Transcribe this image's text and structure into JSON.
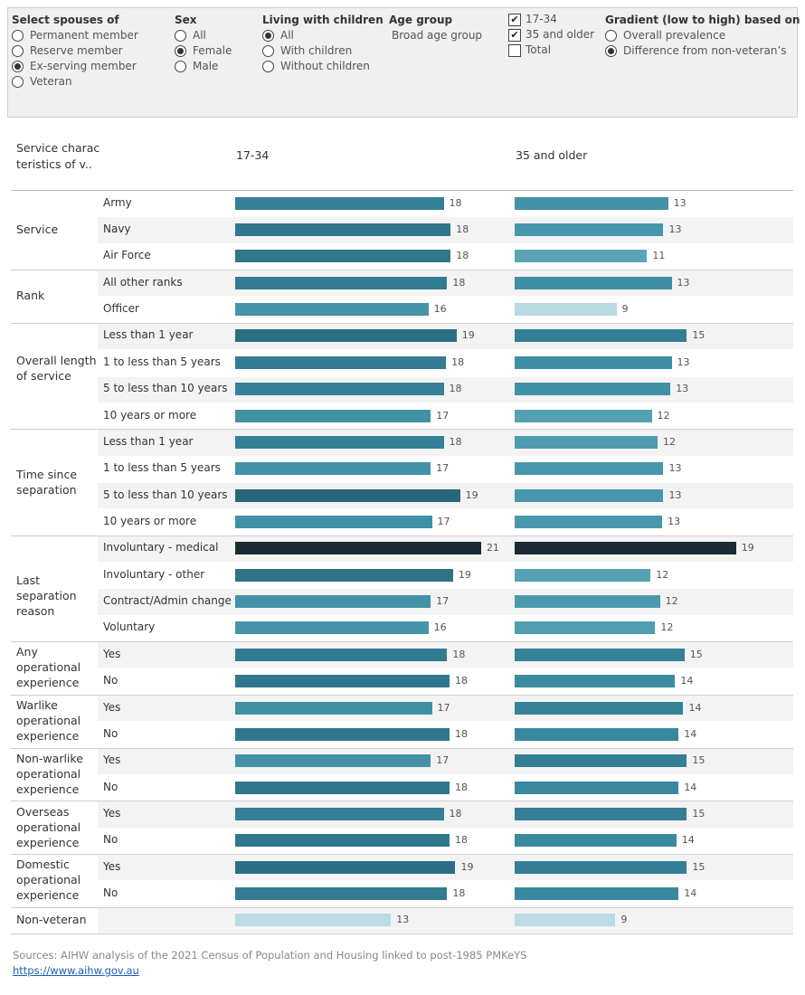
{
  "filters": {
    "spouses": {
      "title": "Select spouses of",
      "options": [
        "Permanent member",
        "Reserve member",
        "Ex-serving member",
        "Veteran"
      ],
      "selected": 2
    },
    "sex": {
      "title": "Sex",
      "options": [
        "All",
        "Female",
        "Male"
      ],
      "selected": 1
    },
    "children": {
      "title": "Living with children",
      "options": [
        "All",
        "With children",
        "Without children"
      ],
      "selected": 0
    },
    "age_group": {
      "title": "Age group",
      "value": "Broad age group"
    },
    "ages": {
      "options": [
        "17-34",
        "35 and older",
        "Total"
      ],
      "checked": [
        true,
        true,
        false
      ]
    },
    "gradient": {
      "title": "Gradient (low to high) based on",
      "options": [
        "Overall prevalence",
        "Difference from non-veteran’s"
      ],
      "selected": 1
    }
  },
  "chart_data": {
    "type": "bar",
    "row_header": [
      "Service charac",
      "teristics of v.."
    ],
    "groups": [
      {
        "label": "Service",
        "categories": [
          "Army",
          "Navy",
          "Air Force"
        ]
      },
      {
        "label": "Rank",
        "categories": [
          "All other ranks",
          "Officer"
        ]
      },
      {
        "label": "Overall length of service",
        "categories": [
          "Less than 1 year",
          "1 to less than 5 years",
          "5 to less than 10 years",
          "10 years or more"
        ]
      },
      {
        "label": "Time since separation",
        "categories": [
          "Less than 1 year",
          "1 to less than 5 years",
          "5 to less than 10 years",
          "10 years or more"
        ]
      },
      {
        "label": "Last separation reason",
        "categories": [
          "Involuntary - medical",
          "Involuntary - other",
          "Contract/Admin change",
          "Voluntary"
        ]
      },
      {
        "label": "Any operational experience",
        "categories": [
          "Yes",
          "No"
        ]
      },
      {
        "label": "Warlike operational experience",
        "categories": [
          "Yes",
          "No"
        ]
      },
      {
        "label": "Non-warlike operational experience",
        "categories": [
          "Yes",
          "No"
        ]
      },
      {
        "label": "Overseas operational experience",
        "categories": [
          "Yes",
          "No"
        ]
      },
      {
        "label": "Domestic operational experience",
        "categories": [
          "Yes",
          "No"
        ]
      },
      {
        "label": "Non-veteran",
        "categories": [
          null
        ]
      }
    ],
    "series": [
      {
        "name": "17-34",
        "values": [
          17.8,
          18.4,
          18.4,
          18.1,
          16.5,
          18.9,
          18.0,
          17.8,
          16.7,
          17.8,
          16.7,
          19.2,
          16.8,
          21.0,
          18.6,
          16.7,
          16.5,
          18.1,
          18.3,
          16.8,
          18.3,
          16.7,
          18.3,
          17.8,
          18.3,
          18.8,
          18.1,
          13.3
        ],
        "value_labels": [
          "18",
          "18",
          "18",
          "18",
          "16",
          "19",
          "18",
          "18",
          "17",
          "18",
          "17",
          "19",
          "17",
          "21",
          "19",
          "17",
          "16",
          "18",
          "18",
          "17",
          "18",
          "17",
          "18",
          "18",
          "18",
          "19",
          "18",
          "13"
        ]
      },
      {
        "name": "35 and older",
        "values": [
          13.1,
          12.7,
          11.3,
          13.4,
          8.7,
          14.7,
          13.4,
          13.3,
          11.7,
          12.2,
          12.7,
          12.7,
          12.6,
          18.9,
          11.6,
          12.4,
          12.0,
          14.5,
          13.7,
          14.4,
          14.0,
          14.7,
          14.0,
          14.7,
          13.8,
          14.7,
          14.0,
          8.6
        ],
        "value_labels": [
          "13",
          "13",
          "11",
          "13",
          "9",
          "15",
          "13",
          "13",
          "12",
          "12",
          "13",
          "13",
          "13",
          "19",
          "12",
          "12",
          "12",
          "15",
          "14",
          "14",
          "14",
          "15",
          "14",
          "15",
          "14",
          "15",
          "14",
          "9"
        ]
      }
    ],
    "gradient_colors": [
      "#bcdbe2",
      "#5ba6b8",
      "#3a8ba2",
      "#2a6a80",
      "#1a2b36"
    ]
  },
  "footer": {
    "sources": "Sources: AIHW analysis of the 2021 Census of Population and Housing linked to post-1985 PMKeYS",
    "link": "https://www.aihw.gov.au"
  }
}
